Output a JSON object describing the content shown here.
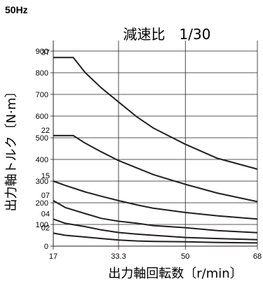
{
  "header": {
    "frequency": "50Hz"
  },
  "chart_data": {
    "type": "line",
    "title": "減速比　1/30",
    "xlabel": "出力軸回転数〔r/min〕",
    "ylabel": "出力軸トルク〔N·m〕",
    "xlim": [
      17,
      68
    ],
    "ylim": [
      0,
      900
    ],
    "x_ticks": [
      17,
      33.3,
      50,
      68
    ],
    "x_tick_labels": [
      "17",
      "33.3",
      "50",
      "68"
    ],
    "y_ticks": [
      0,
      100,
      200,
      300,
      400,
      500,
      600,
      700,
      800,
      900
    ],
    "y_tick_labels": [
      "0",
      "100",
      "200",
      "300",
      "400",
      "500",
      "600",
      "700",
      "800",
      "900"
    ],
    "grid": true,
    "series": [
      {
        "name": "37",
        "x": [
          17,
          22,
          25,
          29,
          33.3,
          38,
          42,
          50,
          58,
          68
        ],
        "values": [
          870,
          870,
          800,
          730,
          665,
          595,
          545,
          470,
          405,
          355
        ]
      },
      {
        "name": "22",
        "x": [
          17,
          22,
          25,
          29,
          33.3,
          38,
          42,
          50,
          58,
          68
        ],
        "values": [
          510,
          510,
          475,
          435,
          395,
          360,
          330,
          285,
          245,
          205
        ]
      },
      {
        "name": "15",
        "x": [
          17,
          20,
          25,
          29,
          33.3,
          38,
          42,
          50,
          58,
          68
        ],
        "values": [
          300,
          280,
          250,
          230,
          210,
          190,
          175,
          155,
          140,
          125
        ]
      },
      {
        "name": "07",
        "x": [
          17,
          20,
          25,
          29,
          33.3,
          38,
          42,
          50,
          58,
          68
        ],
        "values": [
          210,
          178,
          150,
          128,
          115,
          105,
          95,
          85,
          72,
          62
        ]
      },
      {
        "name": "04",
        "x": [
          17,
          20,
          25,
          29,
          33.3,
          38,
          42,
          50,
          58,
          68
        ],
        "values": [
          125,
          105,
          90,
          75,
          63,
          55,
          50,
          40,
          35,
          30
        ]
      },
      {
        "name": "02",
        "x": [
          17,
          20,
          25,
          29,
          33.3,
          38,
          42,
          50,
          58,
          68
        ],
        "values": [
          60,
          50,
          42,
          35,
          28,
          24,
          22,
          20,
          17,
          15
        ]
      }
    ]
  }
}
